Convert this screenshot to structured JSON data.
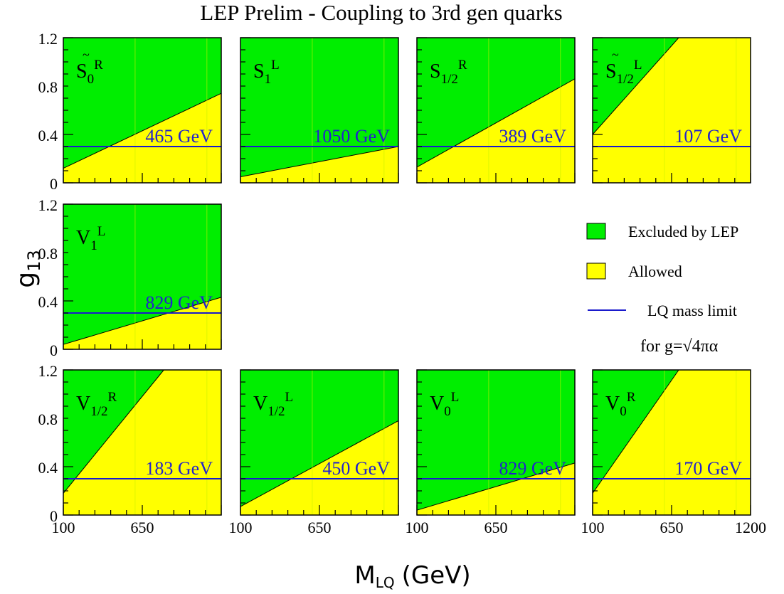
{
  "title": "LEP Prelim - Coupling to 3rd gen quarks",
  "ylabel": "g",
  "ylabel_sub": "13",
  "xlabel": "M",
  "xlabel_sub": "LQ",
  "xlabel_unit": "(GeV)",
  "colors": {
    "excluded": "#00ee00",
    "allowed": "#ffff00",
    "limit_line": "#1a1acc",
    "label_text": "#2222cc",
    "frame": "#000000"
  },
  "legend": {
    "items": [
      {
        "label": "Excluded by LEP",
        "kind": "box",
        "color_key": "excluded"
      },
      {
        "label": "Allowed",
        "kind": "box",
        "color_key": "allowed"
      },
      {
        "label": "LQ mass limit",
        "kind": "line",
        "color_key": "limit_line"
      }
    ],
    "note": "for g=√4πα"
  },
  "chart_data": [
    {
      "type": "area",
      "name": "S̃0R",
      "sym": "S",
      "tilde": true,
      "sub": "0",
      "sup": "R",
      "xlim": [
        100,
        1200
      ],
      "ylim": [
        0,
        1.2
      ],
      "x": [
        100,
        1200
      ],
      "boundary": [
        0.12,
        0.74
      ],
      "limit_g": 0.3,
      "limit_label": "465 GeV"
    },
    {
      "type": "area",
      "name": "S1L",
      "sym": "S",
      "tilde": false,
      "sub": "1",
      "sup": "L",
      "xlim": [
        100,
        1200
      ],
      "ylim": [
        0,
        1.2
      ],
      "x": [
        100,
        1200
      ],
      "boundary": [
        0.05,
        0.3
      ],
      "limit_g": 0.3,
      "limit_label": "1050 GeV"
    },
    {
      "type": "area",
      "name": "S1/2R",
      "sym": "S",
      "tilde": false,
      "sub": "1/2",
      "sup": "R",
      "xlim": [
        100,
        1200
      ],
      "ylim": [
        0,
        1.2
      ],
      "x": [
        100,
        1200
      ],
      "boundary": [
        0.13,
        0.86
      ],
      "limit_g": 0.3,
      "limit_label": "389 GeV"
    },
    {
      "type": "area",
      "name": "S̃1/2L",
      "sym": "S",
      "tilde": true,
      "sub": "1/2",
      "sup": "L",
      "xlim": [
        100,
        1200
      ],
      "ylim": [
        0,
        1.2
      ],
      "x": [
        100,
        700
      ],
      "boundary": [
        0.4,
        1.2
      ],
      "limit_g": 0.3,
      "limit_label": "107 GeV"
    },
    {
      "type": "area",
      "name": "V1L",
      "sym": "V",
      "tilde": false,
      "sub": "1",
      "sup": "L",
      "xlim": [
        100,
        1200
      ],
      "ylim": [
        0,
        1.2
      ],
      "x": [
        100,
        1200
      ],
      "boundary": [
        0.04,
        0.43
      ],
      "limit_g": 0.3,
      "limit_label": "829 GeV"
    },
    {
      "type": "area",
      "name": "V1/2R",
      "sym": "V",
      "tilde": false,
      "sub": "1/2",
      "sup": "R",
      "xlim": [
        100,
        1200
      ],
      "ylim": [
        0,
        1.2
      ],
      "x": [
        100,
        800
      ],
      "boundary": [
        0.18,
        1.2
      ],
      "limit_g": 0.3,
      "limit_label": "183 GeV"
    },
    {
      "type": "area",
      "name": "V1/2L",
      "sym": "V",
      "tilde": false,
      "sub": "1/2",
      "sup": "L",
      "xlim": [
        100,
        1200
      ],
      "ylim": [
        0,
        1.2
      ],
      "x": [
        100,
        1200
      ],
      "boundary": [
        0.07,
        0.78
      ],
      "limit_g": 0.3,
      "limit_label": "450 GeV"
    },
    {
      "type": "area",
      "name": "V0L",
      "sym": "V",
      "tilde": false,
      "sub": "0",
      "sup": "L",
      "xlim": [
        100,
        1200
      ],
      "ylim": [
        0,
        1.2
      ],
      "x": [
        100,
        1200
      ],
      "boundary": [
        0.04,
        0.43
      ],
      "limit_g": 0.3,
      "limit_label": "829 GeV"
    },
    {
      "type": "area",
      "name": "V0R",
      "sym": "V",
      "tilde": false,
      "sub": "0",
      "sup": "R",
      "xlim": [
        100,
        1200
      ],
      "ylim": [
        0,
        1.2
      ],
      "x": [
        100,
        700
      ],
      "boundary": [
        0.18,
        1.2
      ],
      "limit_g": 0.3,
      "limit_label": "170 GeV"
    }
  ],
  "y_ticks": [
    "0",
    "0.4",
    "0.8",
    "1.2"
  ],
  "x_ticks": [
    "100",
    "650",
    "1200"
  ]
}
